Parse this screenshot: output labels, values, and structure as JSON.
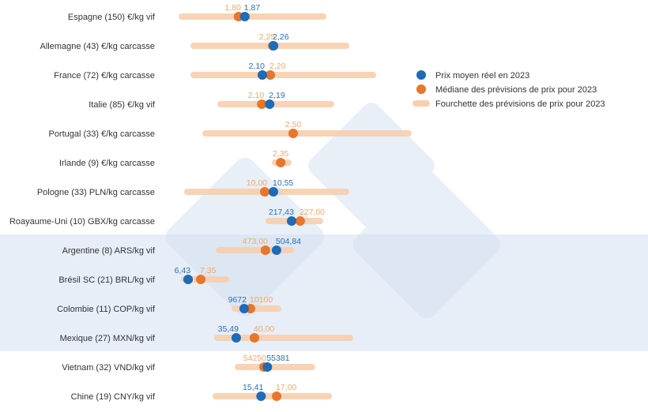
{
  "chart_data": {
    "type": "dot-range",
    "title": "",
    "legend": {
      "placement": "right",
      "entries": [
        {
          "key": "actual",
          "label": "Prix moyen réel en 2023",
          "color": "#1f6bb5"
        },
        {
          "key": "median",
          "label": "Médiane des prévisions de prix pour 2023",
          "color": "#e8762b"
        },
        {
          "key": "range",
          "label": "Fourchette des prévisions de prix pour 2023",
          "color": "#f8cfae"
        }
      ]
    },
    "highlight_band_rows": [
      "Argentine (8) ARS/kg vif",
      "Mexique (27) MXN/kg vif"
    ],
    "highlight_color": "#e7eef7",
    "rows": [
      {
        "category": "Espagne (150) €/kg vif",
        "actual": 1.87,
        "actual_label": "1,87",
        "median": 1.8,
        "median_label": "1,80",
        "range": [
          1.17,
          2.74
        ]
      },
      {
        "category": "Allemagne (43) €/kg carcasse",
        "actual": 2.26,
        "actual_label": "2,26",
        "median": 2.25,
        "median_label": "2,25",
        "range": [
          1.17,
          3.25
        ]
      },
      {
        "category": "France (72) €/kg carcasse",
        "actual": 2.1,
        "actual_label": "2,10",
        "median": 2.2,
        "median_label": "2,20",
        "range": [
          1.23,
          3.5
        ]
      },
      {
        "category": "Italie (85) €/kg vif",
        "actual": 2.19,
        "actual_label": "2,19",
        "median": 2.1,
        "median_label": "2,10",
        "range": [
          1.63,
          2.89
        ]
      },
      {
        "category": "Portugal (33) €/kg carcasse",
        "actual": null,
        "actual_label": "",
        "median": 2.5,
        "median_label": "2,50",
        "range": [
          1.17,
          4.25
        ]
      },
      {
        "category": "Irlande (9) €/kg carcasse",
        "actual": null,
        "actual_label": "",
        "median": 2.35,
        "median_label": "2,35",
        "range": [
          2.27,
          2.46
        ]
      },
      {
        "category": "Pologne (33) PLN/kg carcasse",
        "actual": 10.55,
        "actual_label": "10,55",
        "median": 10.0,
        "median_label": "10,00",
        "range": [
          5.1,
          15.15
        ]
      },
      {
        "category": "Roayaume-Uni (10) GBX/kg carcasse",
        "actual": 217.43,
        "actual_label": "217,43",
        "median": 227.0,
        "median_label": "227,00",
        "range": [
          192,
          249
        ]
      },
      {
        "category": "Argentine (8) ARS/kg vif",
        "actual": 504.84,
        "actual_label": "504,84",
        "median": 473.0,
        "median_label": "473,00",
        "range": [
          339,
          546
        ]
      },
      {
        "category": "Brésil SC (21) BRL/kg vif",
        "actual": 6.43,
        "actual_label": "6,43",
        "median": 7.35,
        "median_label": "7,35",
        "range": [
          6.14,
          9.19
        ]
      },
      {
        "category": "Colombie (11) COP/kg vif",
        "actual": 9672,
        "actual_label": "9672",
        "median": 10100,
        "median_label": "10100",
        "range": [
          9040,
          11955
        ]
      },
      {
        "category": "Mexique (27) MXN/kg vif",
        "actual": 35.49,
        "actual_label": "35,49",
        "median": 40.0,
        "median_label": "40,00",
        "range": [
          30.8,
          63.7
        ]
      },
      {
        "category": "Vietnam (32) VND/kg vif",
        "actual": 55381,
        "actual_label": "55381",
        "median": 54250,
        "median_label": "54250",
        "range": [
          45670,
          70110
        ]
      },
      {
        "category": "Chine (19) CNY/kg vif",
        "actual": 15.41,
        "actual_label": "15,41",
        "median": 17.0,
        "median_label": "17,00",
        "range": [
          10.8,
          22.3
        ]
      }
    ]
  }
}
